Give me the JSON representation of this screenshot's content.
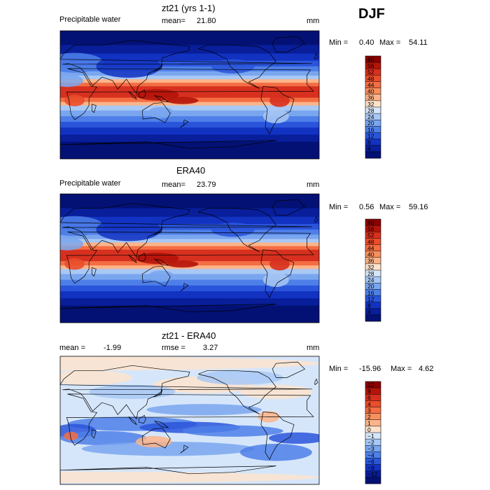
{
  "season": "DJF",
  "panels": [
    {
      "title": "zt21 (yrs 1-1)",
      "left_label": "Precipitable water",
      "mid_label": "mean=",
      "mid_value": "21.80",
      "unit": "mm",
      "stats": {
        "min_label": "Min =",
        "min": "0.40",
        "max_label": "Max =",
        "max": "54.11"
      },
      "colorbar": {
        "ticks": [
          "60",
          "56",
          "52",
          "48",
          "44",
          "40",
          "36",
          "32",
          "28",
          "24",
          "20",
          "16",
          "12",
          "8",
          "4"
        ],
        "colors": [
          "#8b0000",
          "#b5140a",
          "#d7301f",
          "#ea4d2c",
          "#f46d43",
          "#f7905f",
          "#fbb48a",
          "#fde3cc",
          "#d6e6fa",
          "#a8c8f5",
          "#7aa6ef",
          "#4e7fe8",
          "#2a55db",
          "#1232c2",
          "#081e9a",
          "#031175"
        ]
      }
    },
    {
      "title": "ERA40",
      "left_label": "Precipitable water",
      "mid_label": "mean=",
      "mid_value": "23.79",
      "unit": "mm",
      "stats": {
        "min_label": "Min =",
        "min": "0.56",
        "max_label": "Max =",
        "max": "59.16"
      },
      "colorbar": {
        "ticks": [
          "60",
          "56",
          "52",
          "48",
          "44",
          "40",
          "36",
          "32",
          "28",
          "24",
          "20",
          "16",
          "12",
          "8",
          "4"
        ],
        "colors": [
          "#8b0000",
          "#b5140a",
          "#d7301f",
          "#ea4d2c",
          "#f46d43",
          "#f7905f",
          "#fbb48a",
          "#fde3cc",
          "#d6e6fa",
          "#a8c8f5",
          "#7aa6ef",
          "#4e7fe8",
          "#2a55db",
          "#1232c2",
          "#081e9a",
          "#031175"
        ]
      }
    },
    {
      "title": "zt21 - ERA40",
      "left_label": "mean =",
      "left_value": "-1.99",
      "mid_label": "rmse =",
      "mid_value": "3.27",
      "unit": "mm",
      "stats": {
        "min_label": "Min =",
        "min": "-15.96",
        "max_label": "Max =",
        "max": "4.62"
      },
      "colorbar": {
        "ticks": [
          "12",
          "9",
          "6",
          "4",
          "3",
          "2",
          "1",
          "0",
          "−1",
          "−2",
          "−3",
          "−4",
          "−6",
          "−9",
          "−12"
        ],
        "colors": [
          "#8b0000",
          "#b5140a",
          "#d7301f",
          "#ea4d2c",
          "#f46d43",
          "#f7905f",
          "#fbb48a",
          "#fde3cc",
          "#d6e6fa",
          "#a8c8f5",
          "#7aa6ef",
          "#4e7fe8",
          "#2a55db",
          "#1232c2",
          "#081e9a",
          "#031175"
        ]
      }
    }
  ],
  "chart_data": [
    {
      "type": "heatmap",
      "title": "zt21 (yrs 1-1)",
      "variable": "Precipitable water",
      "mean": 21.8,
      "unit": "mm",
      "min": 0.4,
      "max": 54.11,
      "levels": [
        4,
        8,
        12,
        16,
        20,
        24,
        28,
        32,
        36,
        40,
        44,
        48,
        52,
        56,
        60
      ]
    },
    {
      "type": "heatmap",
      "title": "ERA40",
      "variable": "Precipitable water",
      "mean": 23.79,
      "unit": "mm",
      "min": 0.56,
      "max": 59.16,
      "levels": [
        4,
        8,
        12,
        16,
        20,
        24,
        28,
        32,
        36,
        40,
        44,
        48,
        52,
        56,
        60
      ]
    },
    {
      "type": "heatmap",
      "title": "zt21 - ERA40",
      "mean": -1.99,
      "rmse": 3.27,
      "unit": "mm",
      "min": -15.96,
      "max": 4.62,
      "levels": [
        -12,
        -9,
        -6,
        -4,
        -3,
        -2,
        -1,
        0,
        1,
        2,
        3,
        4,
        6,
        9,
        12
      ]
    }
  ]
}
